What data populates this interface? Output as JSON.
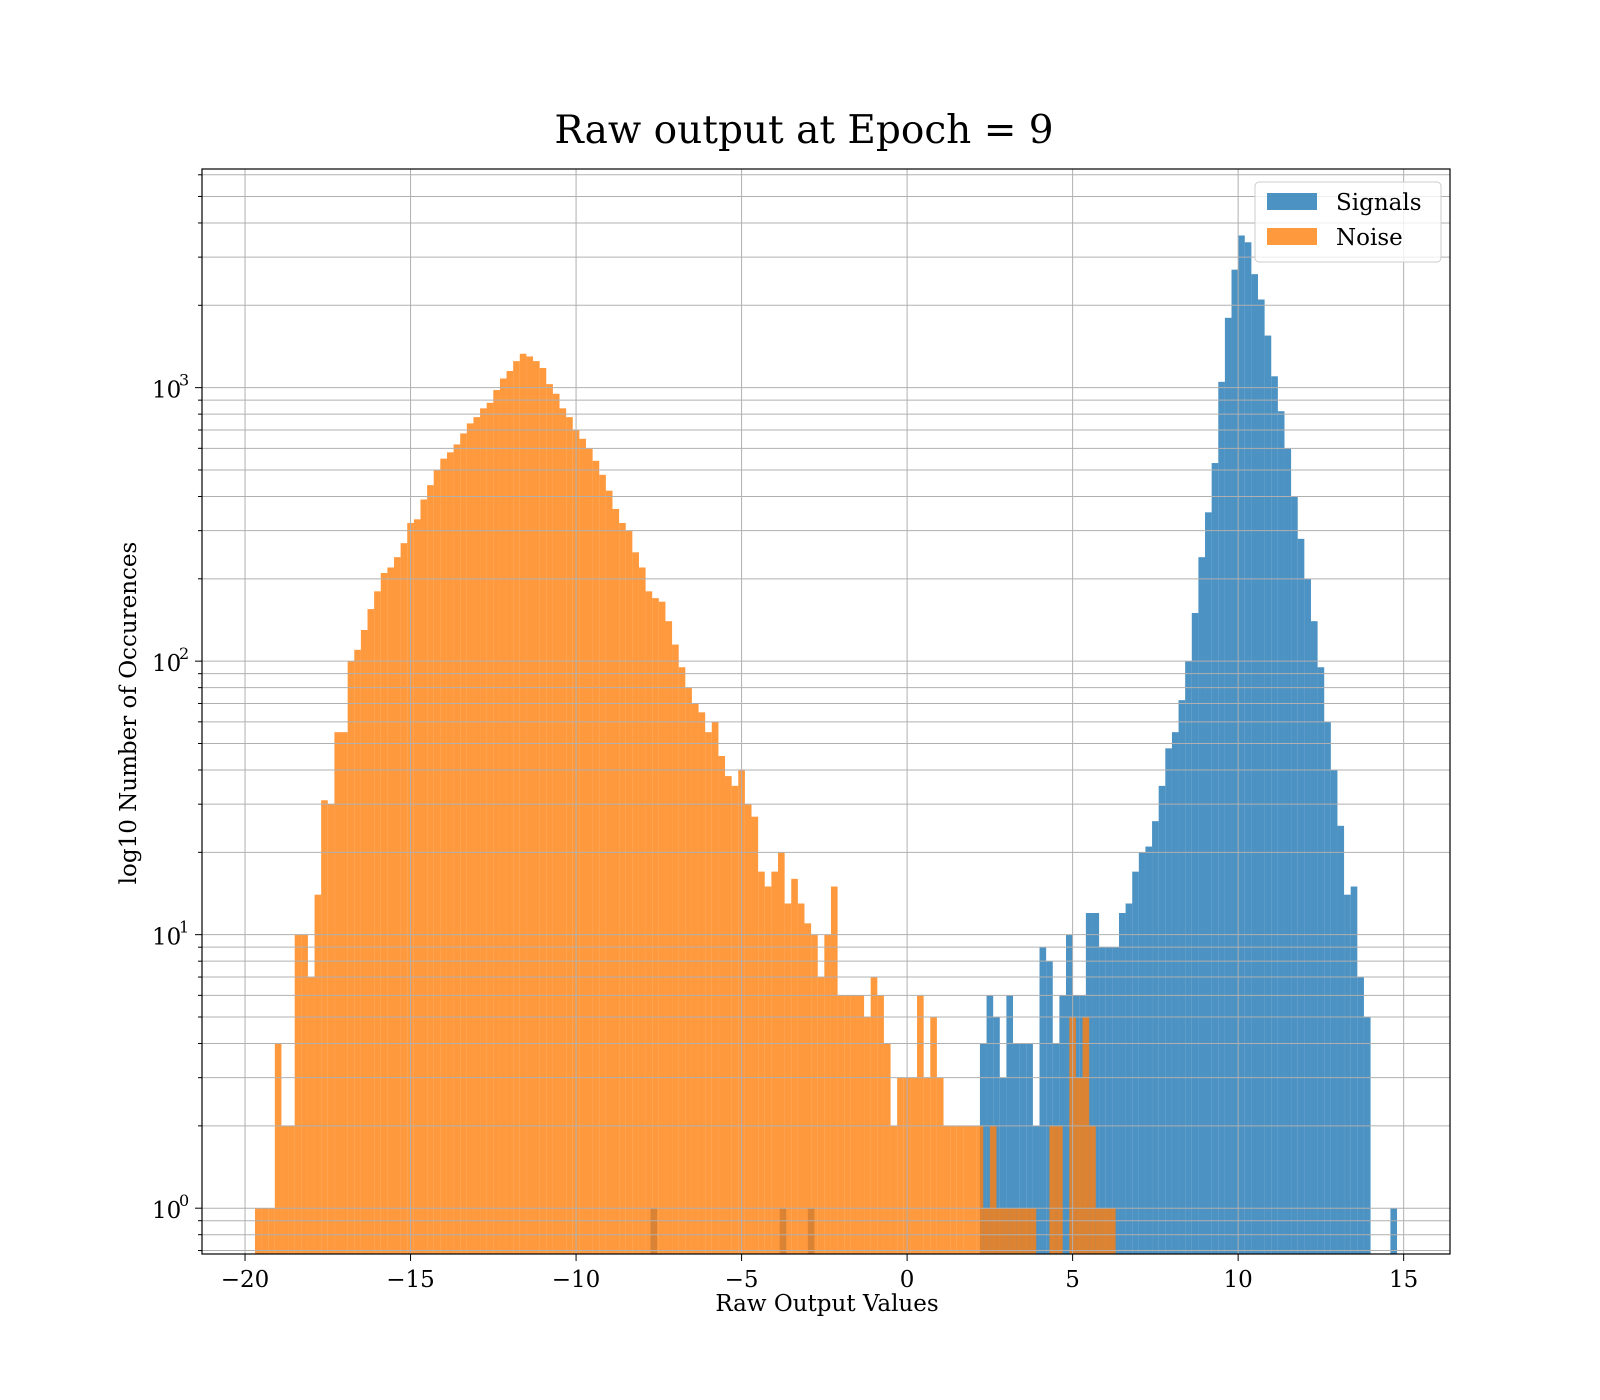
{
  "chart_data": {
    "type": "bar",
    "subtype": "overlaid-histogram",
    "title": "Raw output at Epoch = 9",
    "xlabel": "Raw Output Values",
    "ylabel": "log10 Number of Occurences",
    "xlim": [
      -21.3,
      16.4
    ],
    "ylim": [
      0.68,
      6300
    ],
    "yscale": "log",
    "grid": true,
    "legend_position": "top-right",
    "x_ticks": [
      -20,
      -15,
      -10,
      -5,
      0,
      5,
      10,
      15
    ],
    "x_tick_labels": [
      "−20",
      "−15",
      "−10",
      "−5",
      "0",
      "5",
      "10",
      "15"
    ],
    "y_ticks": [
      {
        "value": 1,
        "base": "10",
        "exp": "0"
      },
      {
        "value": 10,
        "base": "10",
        "exp": "1"
      },
      {
        "value": 100,
        "base": "10",
        "exp": "2"
      },
      {
        "value": 1000,
        "base": "10",
        "exp": "3"
      }
    ],
    "series": [
      {
        "name": "Signals",
        "color": "#1f77b4",
        "opacity": 0.8,
        "bins": [
          [
            -7.75,
            -7.55,
            1
          ],
          [
            -3.85,
            -3.65,
            1
          ],
          [
            -3.0,
            -2.8,
            1
          ],
          [
            2.2,
            2.4,
            4
          ],
          [
            2.4,
            2.6,
            6
          ],
          [
            2.6,
            2.8,
            5
          ],
          [
            2.8,
            3.0,
            3
          ],
          [
            3.0,
            3.2,
            6
          ],
          [
            3.2,
            3.4,
            4
          ],
          [
            3.4,
            3.6,
            4
          ],
          [
            3.6,
            3.8,
            4
          ],
          [
            3.8,
            4.0,
            2
          ],
          [
            4.0,
            4.2,
            9
          ],
          [
            4.2,
            4.4,
            8
          ],
          [
            4.4,
            4.6,
            4
          ],
          [
            4.6,
            4.8,
            6
          ],
          [
            4.8,
            5.0,
            10
          ],
          [
            5.0,
            5.2,
            6
          ],
          [
            5.2,
            5.4,
            6
          ],
          [
            5.4,
            5.6,
            12
          ],
          [
            5.6,
            5.8,
            12
          ],
          [
            5.8,
            6.0,
            9
          ],
          [
            6.0,
            6.2,
            9
          ],
          [
            6.2,
            6.4,
            9
          ],
          [
            6.4,
            6.6,
            12
          ],
          [
            6.6,
            6.8,
            13
          ],
          [
            6.8,
            7.0,
            17
          ],
          [
            7.0,
            7.2,
            20
          ],
          [
            7.2,
            7.4,
            21
          ],
          [
            7.4,
            7.6,
            26
          ],
          [
            7.6,
            7.8,
            35
          ],
          [
            7.8,
            8.0,
            48
          ],
          [
            8.0,
            8.2,
            55
          ],
          [
            8.2,
            8.4,
            72
          ],
          [
            8.4,
            8.6,
            100
          ],
          [
            8.6,
            8.8,
            150
          ],
          [
            8.8,
            9.0,
            240
          ],
          [
            9.0,
            9.2,
            350
          ],
          [
            9.2,
            9.4,
            530
          ],
          [
            9.4,
            9.6,
            1050
          ],
          [
            9.6,
            9.8,
            1800
          ],
          [
            9.8,
            10.0,
            2700
          ],
          [
            10.0,
            10.2,
            3600
          ],
          [
            10.2,
            10.4,
            3400
          ],
          [
            10.4,
            10.6,
            2600
          ],
          [
            10.6,
            10.8,
            2100
          ],
          [
            10.8,
            11.0,
            1550
          ],
          [
            11.0,
            11.2,
            1100
          ],
          [
            11.2,
            11.4,
            820
          ],
          [
            11.4,
            11.6,
            600
          ],
          [
            11.6,
            11.8,
            400
          ],
          [
            11.8,
            12.0,
            280
          ],
          [
            12.0,
            12.2,
            200
          ],
          [
            12.2,
            12.4,
            140
          ],
          [
            12.4,
            12.6,
            95
          ],
          [
            12.6,
            12.8,
            60
          ],
          [
            12.8,
            13.0,
            40
          ],
          [
            13.0,
            13.2,
            25
          ],
          [
            13.2,
            13.4,
            14
          ],
          [
            13.4,
            13.6,
            15
          ],
          [
            13.6,
            13.8,
            7
          ],
          [
            13.8,
            14.0,
            5
          ],
          [
            14.6,
            14.8,
            1
          ]
        ]
      },
      {
        "name": "Noise",
        "color": "#ff7f0e",
        "opacity": 0.8,
        "bins": [
          [
            -19.7,
            -19.5,
            1
          ],
          [
            -19.5,
            -19.3,
            1
          ],
          [
            -19.3,
            -19.1,
            1
          ],
          [
            -19.1,
            -18.9,
            4
          ],
          [
            -18.9,
            -18.7,
            2
          ],
          [
            -18.7,
            -18.5,
            2
          ],
          [
            -18.5,
            -18.3,
            10
          ],
          [
            -18.3,
            -18.1,
            10
          ],
          [
            -18.1,
            -17.9,
            7
          ],
          [
            -17.9,
            -17.7,
            14
          ],
          [
            -17.7,
            -17.5,
            31
          ],
          [
            -17.5,
            -17.3,
            30
          ],
          [
            -17.3,
            -17.1,
            55
          ],
          [
            -17.1,
            -16.9,
            55
          ],
          [
            -16.9,
            -16.7,
            100
          ],
          [
            -16.7,
            -16.5,
            110
          ],
          [
            -16.5,
            -16.3,
            130
          ],
          [
            -16.3,
            -16.1,
            155
          ],
          [
            -16.1,
            -15.9,
            180
          ],
          [
            -15.9,
            -15.7,
            210
          ],
          [
            -15.7,
            -15.5,
            220
          ],
          [
            -15.5,
            -15.3,
            240
          ],
          [
            -15.3,
            -15.1,
            270
          ],
          [
            -15.1,
            -14.9,
            320
          ],
          [
            -14.9,
            -14.7,
            330
          ],
          [
            -14.7,
            -14.5,
            390
          ],
          [
            -14.5,
            -14.3,
            440
          ],
          [
            -14.3,
            -14.1,
            500
          ],
          [
            -14.1,
            -13.9,
            550
          ],
          [
            -13.9,
            -13.7,
            580
          ],
          [
            -13.7,
            -13.5,
            620
          ],
          [
            -13.5,
            -13.3,
            680
          ],
          [
            -13.3,
            -13.1,
            740
          ],
          [
            -13.1,
            -12.9,
            780
          ],
          [
            -12.9,
            -12.7,
            840
          ],
          [
            -12.7,
            -12.5,
            880
          ],
          [
            -12.5,
            -12.3,
            980
          ],
          [
            -12.3,
            -12.1,
            1080
          ],
          [
            -12.1,
            -11.9,
            1150
          ],
          [
            -11.9,
            -11.7,
            1250
          ],
          [
            -11.7,
            -11.5,
            1330
          ],
          [
            -11.5,
            -11.3,
            1300
          ],
          [
            -11.3,
            -11.1,
            1250
          ],
          [
            -11.1,
            -10.9,
            1180
          ],
          [
            -10.9,
            -10.7,
            1030
          ],
          [
            -10.7,
            -10.5,
            950
          ],
          [
            -10.5,
            -10.3,
            840
          ],
          [
            -10.3,
            -10.1,
            780
          ],
          [
            -10.1,
            -9.9,
            700
          ],
          [
            -9.9,
            -9.7,
            650
          ],
          [
            -9.7,
            -9.5,
            600
          ],
          [
            -9.5,
            -9.3,
            540
          ],
          [
            -9.3,
            -9.1,
            480
          ],
          [
            -9.1,
            -8.9,
            420
          ],
          [
            -8.9,
            -8.7,
            360
          ],
          [
            -8.7,
            -8.5,
            320
          ],
          [
            -8.5,
            -8.3,
            300
          ],
          [
            -8.3,
            -8.1,
            250
          ],
          [
            -8.1,
            -7.9,
            220
          ],
          [
            -7.9,
            -7.7,
            180
          ],
          [
            -7.7,
            -7.5,
            170
          ],
          [
            -7.5,
            -7.3,
            165
          ],
          [
            -7.3,
            -7.1,
            140
          ],
          [
            -7.1,
            -6.9,
            115
          ],
          [
            -6.9,
            -6.7,
            95
          ],
          [
            -6.7,
            -6.5,
            80
          ],
          [
            -6.5,
            -6.3,
            70
          ],
          [
            -6.3,
            -6.1,
            65
          ],
          [
            -6.1,
            -5.9,
            55
          ],
          [
            -5.9,
            -5.7,
            60
          ],
          [
            -5.7,
            -5.5,
            45
          ],
          [
            -5.5,
            -5.3,
            38
          ],
          [
            -5.3,
            -5.1,
            35
          ],
          [
            -5.1,
            -4.9,
            40
          ],
          [
            -4.9,
            -4.7,
            30
          ],
          [
            -4.7,
            -4.5,
            27
          ],
          [
            -4.5,
            -4.3,
            17
          ],
          [
            -4.3,
            -4.1,
            15
          ],
          [
            -4.1,
            -3.9,
            17
          ],
          [
            -3.9,
            -3.7,
            20
          ],
          [
            -3.7,
            -3.5,
            13
          ],
          [
            -3.5,
            -3.3,
            16
          ],
          [
            -3.3,
            -3.1,
            13
          ],
          [
            -3.1,
            -2.9,
            11
          ],
          [
            -2.9,
            -2.7,
            10
          ],
          [
            -2.7,
            -2.5,
            7
          ],
          [
            -2.5,
            -2.3,
            10
          ],
          [
            -2.3,
            -2.1,
            15
          ],
          [
            -2.1,
            -1.9,
            6
          ],
          [
            -1.9,
            -1.7,
            6
          ],
          [
            -1.7,
            -1.5,
            6
          ],
          [
            -1.5,
            -1.3,
            6
          ],
          [
            -1.3,
            -1.1,
            5
          ],
          [
            -1.1,
            -0.9,
            7
          ],
          [
            -0.9,
            -0.7,
            6
          ],
          [
            -0.7,
            -0.5,
            4
          ],
          [
            -0.5,
            -0.3,
            2
          ],
          [
            -0.3,
            -0.1,
            3
          ],
          [
            -0.1,
            0.1,
            3
          ],
          [
            0.1,
            0.3,
            3
          ],
          [
            0.3,
            0.5,
            6
          ],
          [
            0.5,
            0.7,
            3
          ],
          [
            0.7,
            0.9,
            5
          ],
          [
            0.9,
            1.1,
            3
          ],
          [
            1.1,
            1.3,
            2
          ],
          [
            1.3,
            1.5,
            2
          ],
          [
            1.5,
            1.7,
            2
          ],
          [
            1.7,
            1.9,
            2
          ],
          [
            1.9,
            2.1,
            2
          ],
          [
            2.1,
            2.3,
            2
          ],
          [
            2.3,
            2.5,
            1
          ],
          [
            2.5,
            2.7,
            2
          ],
          [
            2.7,
            2.9,
            1
          ],
          [
            2.9,
            3.1,
            1
          ],
          [
            3.1,
            3.3,
            1
          ],
          [
            3.3,
            3.5,
            1
          ],
          [
            3.5,
            3.7,
            1
          ],
          [
            3.7,
            3.9,
            1
          ],
          [
            4.3,
            4.5,
            2
          ],
          [
            4.5,
            4.7,
            2
          ],
          [
            4.9,
            5.1,
            5
          ],
          [
            5.1,
            5.3,
            3
          ],
          [
            5.3,
            5.5,
            5
          ],
          [
            5.5,
            5.7,
            2
          ],
          [
            5.7,
            5.9,
            1
          ],
          [
            5.9,
            6.1,
            1
          ],
          [
            6.1,
            6.3,
            1
          ]
        ]
      }
    ]
  }
}
